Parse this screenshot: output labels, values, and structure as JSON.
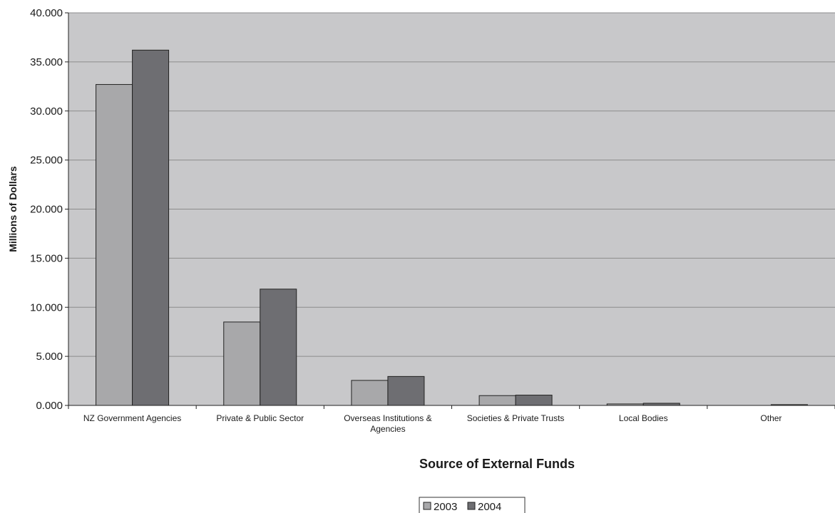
{
  "chart_data": {
    "type": "bar",
    "title": "",
    "xlabel": "Source of External Funds",
    "ylabel": "Millions of Dollars",
    "ylim": [
      0,
      40
    ],
    "yticks": [
      0,
      5,
      10,
      15,
      20,
      25,
      30,
      35,
      40
    ],
    "ytick_labels": [
      "0.000",
      "5.000",
      "10.000",
      "15.000",
      "20.000",
      "25.000",
      "30.000",
      "35.000",
      "40.000"
    ],
    "grid": true,
    "legend_position": "bottom-center",
    "categories": [
      "NZ Government Agencies",
      "Private & Public Sector",
      "Overseas Institutions & Agencies",
      "Societies & Private Trusts",
      "Local Bodies",
      "Other"
    ],
    "series": [
      {
        "name": "2003",
        "color": "#a8a8aa",
        "values": [
          32.7,
          8.5,
          2.55,
          1.0,
          0.15,
          0.0
        ]
      },
      {
        "name": "2004",
        "color": "#6e6e72",
        "values": [
          36.2,
          11.85,
          2.95,
          1.05,
          0.22,
          0.08
        ]
      }
    ],
    "colors": {
      "plot_background": "#c8c8ca",
      "gridline": "#8c8c8c",
      "bar_stroke": "#222222"
    }
  }
}
